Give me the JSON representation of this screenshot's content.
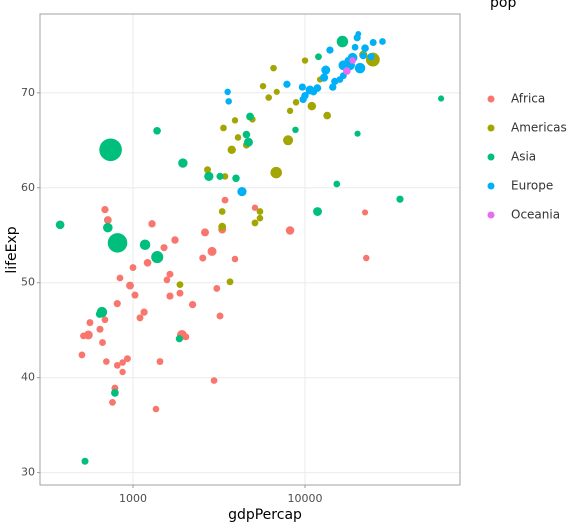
{
  "chart_data": {
    "type": "scatter",
    "x_label": "gdpPercap",
    "y_label": "lifeExp",
    "size_legend_title": "pop",
    "log_x": true,
    "grid": true,
    "xlim": [
      288,
      79600
    ],
    "ylim": [
      28.7,
      78.3
    ],
    "xticks": [
      1000,
      10000
    ],
    "yticks": [
      30,
      40,
      50,
      60,
      70
    ],
    "series": [
      {
        "name": "Africa",
        "color": "#F8766D",
        "x": [
          505,
          515,
          562,
          550,
          643,
          665,
          687,
          687,
          714,
          700,
          760,
          785,
          810,
          810,
          840,
          870,
          870,
          928,
          961,
          1000,
          1027,
          1098,
          1160,
          1215,
          1290,
          1360,
          1435,
          1515,
          1575,
          1640,
          1640,
          1754,
          1875,
          1925,
          2030,
          2220,
          2545,
          2622,
          2880,
          2960,
          3070,
          3205,
          3300,
          3427,
          3917,
          5117,
          8185,
          22340,
          22700
        ],
        "values": [
          42.4,
          44.4,
          45.8,
          44.5,
          45.1,
          43.7,
          46.1,
          57.7,
          56.6,
          41.7,
          37.4,
          38.9,
          41.3,
          47.8,
          50.5,
          40.6,
          41.6,
          42.0,
          49.7,
          51.6,
          48.7,
          46.3,
          46.9,
          52.1,
          56.2,
          36.7,
          41.7,
          53.7,
          50.3,
          50.9,
          48.6,
          54.5,
          48.9,
          44.5,
          44.3,
          47.7,
          52.6,
          55.3,
          53.3,
          39.7,
          49.4,
          46.5,
          55.6,
          58.7,
          52.5,
          57.9,
          55.5,
          57.4,
          52.6
        ],
        "sizes": [
          5000000,
          4000000,
          6000000,
          34600000,
          7000000,
          5000000,
          4000000,
          9000000,
          16000000,
          3000000,
          5000000,
          6000000,
          4000000,
          8000000,
          5000000,
          2000000,
          3000000,
          6000000,
          17000000,
          5000000,
          7000000,
          6000000,
          9000000,
          14000000,
          10000000,
          3000000,
          5000000,
          7000000,
          4000000,
          6000000,
          8000000,
          11000000,
          6000000,
          62200000,
          5000000,
          9000000,
          7000000,
          18000000,
          38800000,
          4000000,
          5000000,
          6000000,
          17000000,
          5000000,
          3000000,
          2000000,
          27100000,
          1000000,
          2500000
        ]
      },
      {
        "name": "Americas",
        "color": "#A3A500",
        "x": [
          1875,
          3664,
          2712,
          3300,
          3300,
          3427,
          3750,
          3917,
          3357,
          4080,
          4565,
          4950,
          5117,
          5470,
          5470,
          5700,
          6150,
          6800,
          6560,
          6850,
          7970,
          8185,
          8870,
          10950,
          13450,
          12220,
          10000,
          24800,
          21800
        ],
        "values": [
          49.8,
          50.1,
          61.9,
          57.5,
          55.9,
          61.2,
          64.0,
          67.1,
          66.3,
          65.3,
          64.5,
          67.2,
          56.3,
          56.8,
          57.5,
          70.7,
          69.5,
          61.6,
          72.6,
          70.1,
          65.0,
          68.1,
          69.0,
          68.6,
          67.6,
          71.4,
          73.4,
          73.5,
          74.0
        ],
        "sizes": [
          5000000,
          5100000,
          6000000,
          4000000,
          15990000,
          3000000,
          25100000,
          2000000,
          4000000,
          3000000,
          7000000,
          2000000,
          5000000,
          3000000,
          4000000,
          2000000,
          3000000,
          114300000,
          3000000,
          1000000,
          63800000,
          2000000,
          3000000,
          26900000,
          13500000,
          1000000,
          2000000,
          220200000,
          23800000
        ]
      },
      {
        "name": "Asia",
        "color": "#00BF7D",
        "x": [
          1380,
          1950,
          2760,
          3205,
          3970,
          4565,
          4690,
          8800,
          11820,
          15300,
          16500,
          20200,
          35650,
          61800,
          11970,
          1383,
          1175,
          660,
          526,
          377,
          714,
          741,
          813,
          785,
          1860,
          640,
          4790
        ],
        "values": [
          66.0,
          62.6,
          61.2,
          61.2,
          61.0,
          65.6,
          64.8,
          66.1,
          57.5,
          60.4,
          75.4,
          65.7,
          58.8,
          69.4,
          73.8,
          52.7,
          54.0,
          46.9,
          31.2,
          56.1,
          55.8,
          64.0,
          54.2,
          38.4,
          44.1,
          46.7,
          67.5
        ],
        "sizes": [
          14000000,
          46800000,
          44100000,
          8000000,
          12000000,
          12800000,
          36400000,
          3000000,
          35500000,
          4000000,
          113900000,
          1000000,
          8100000,
          1100000,
          4600000,
          137000000,
          78000000,
          80400000,
          6900000,
          31500000,
          50500000,
          943500000,
          634000000,
          14900000,
          8400000,
          13100000,
          16000000
        ]
      },
      {
        "name": "Europe",
        "color": "#00B0F6",
        "x": [
          3550,
          3600,
          4300,
          7850,
          10000,
          9650,
          9750,
          10690,
          11200,
          11800,
          12900,
          13960,
          14500,
          15960,
          16700,
          17800,
          18280,
          18900,
          19540,
          20100,
          20890,
          21800,
          22340,
          24200,
          24900,
          28200,
          20400,
          16700,
          13200,
          14900
        ],
        "values": [
          70.1,
          69.1,
          59.6,
          70.9,
          69.7,
          70.6,
          69.3,
          70.3,
          70.1,
          70.5,
          71.6,
          74.5,
          70.6,
          71.4,
          71.8,
          73.4,
          72.9,
          73.7,
          74.8,
          75.8,
          72.6,
          73.9,
          74.7,
          73.8,
          75.3,
          75.4,
          76.2,
          72.9,
          72.4,
          71.2
        ],
        "sizes": [
          2500000,
          3000000,
          42400000,
          9000000,
          10000000,
          9000000,
          8800000,
          34600000,
          9000000,
          15000000,
          21600000,
          9300000,
          10000000,
          4000000,
          5000000,
          7500000,
          56000000,
          53000000,
          4000000,
          8000000,
          78000000,
          5000000,
          14000000,
          7500000,
          6300000,
          4000000,
          200000,
          56000000,
          37000000,
          10000000
        ]
      },
      {
        "name": "Oceania",
        "color": "#E76BF3",
        "x": [
          17500,
          18900
        ],
        "values": [
          72.3,
          73.4
        ],
        "sizes": [
          14000000,
          3200000
        ]
      }
    ]
  }
}
